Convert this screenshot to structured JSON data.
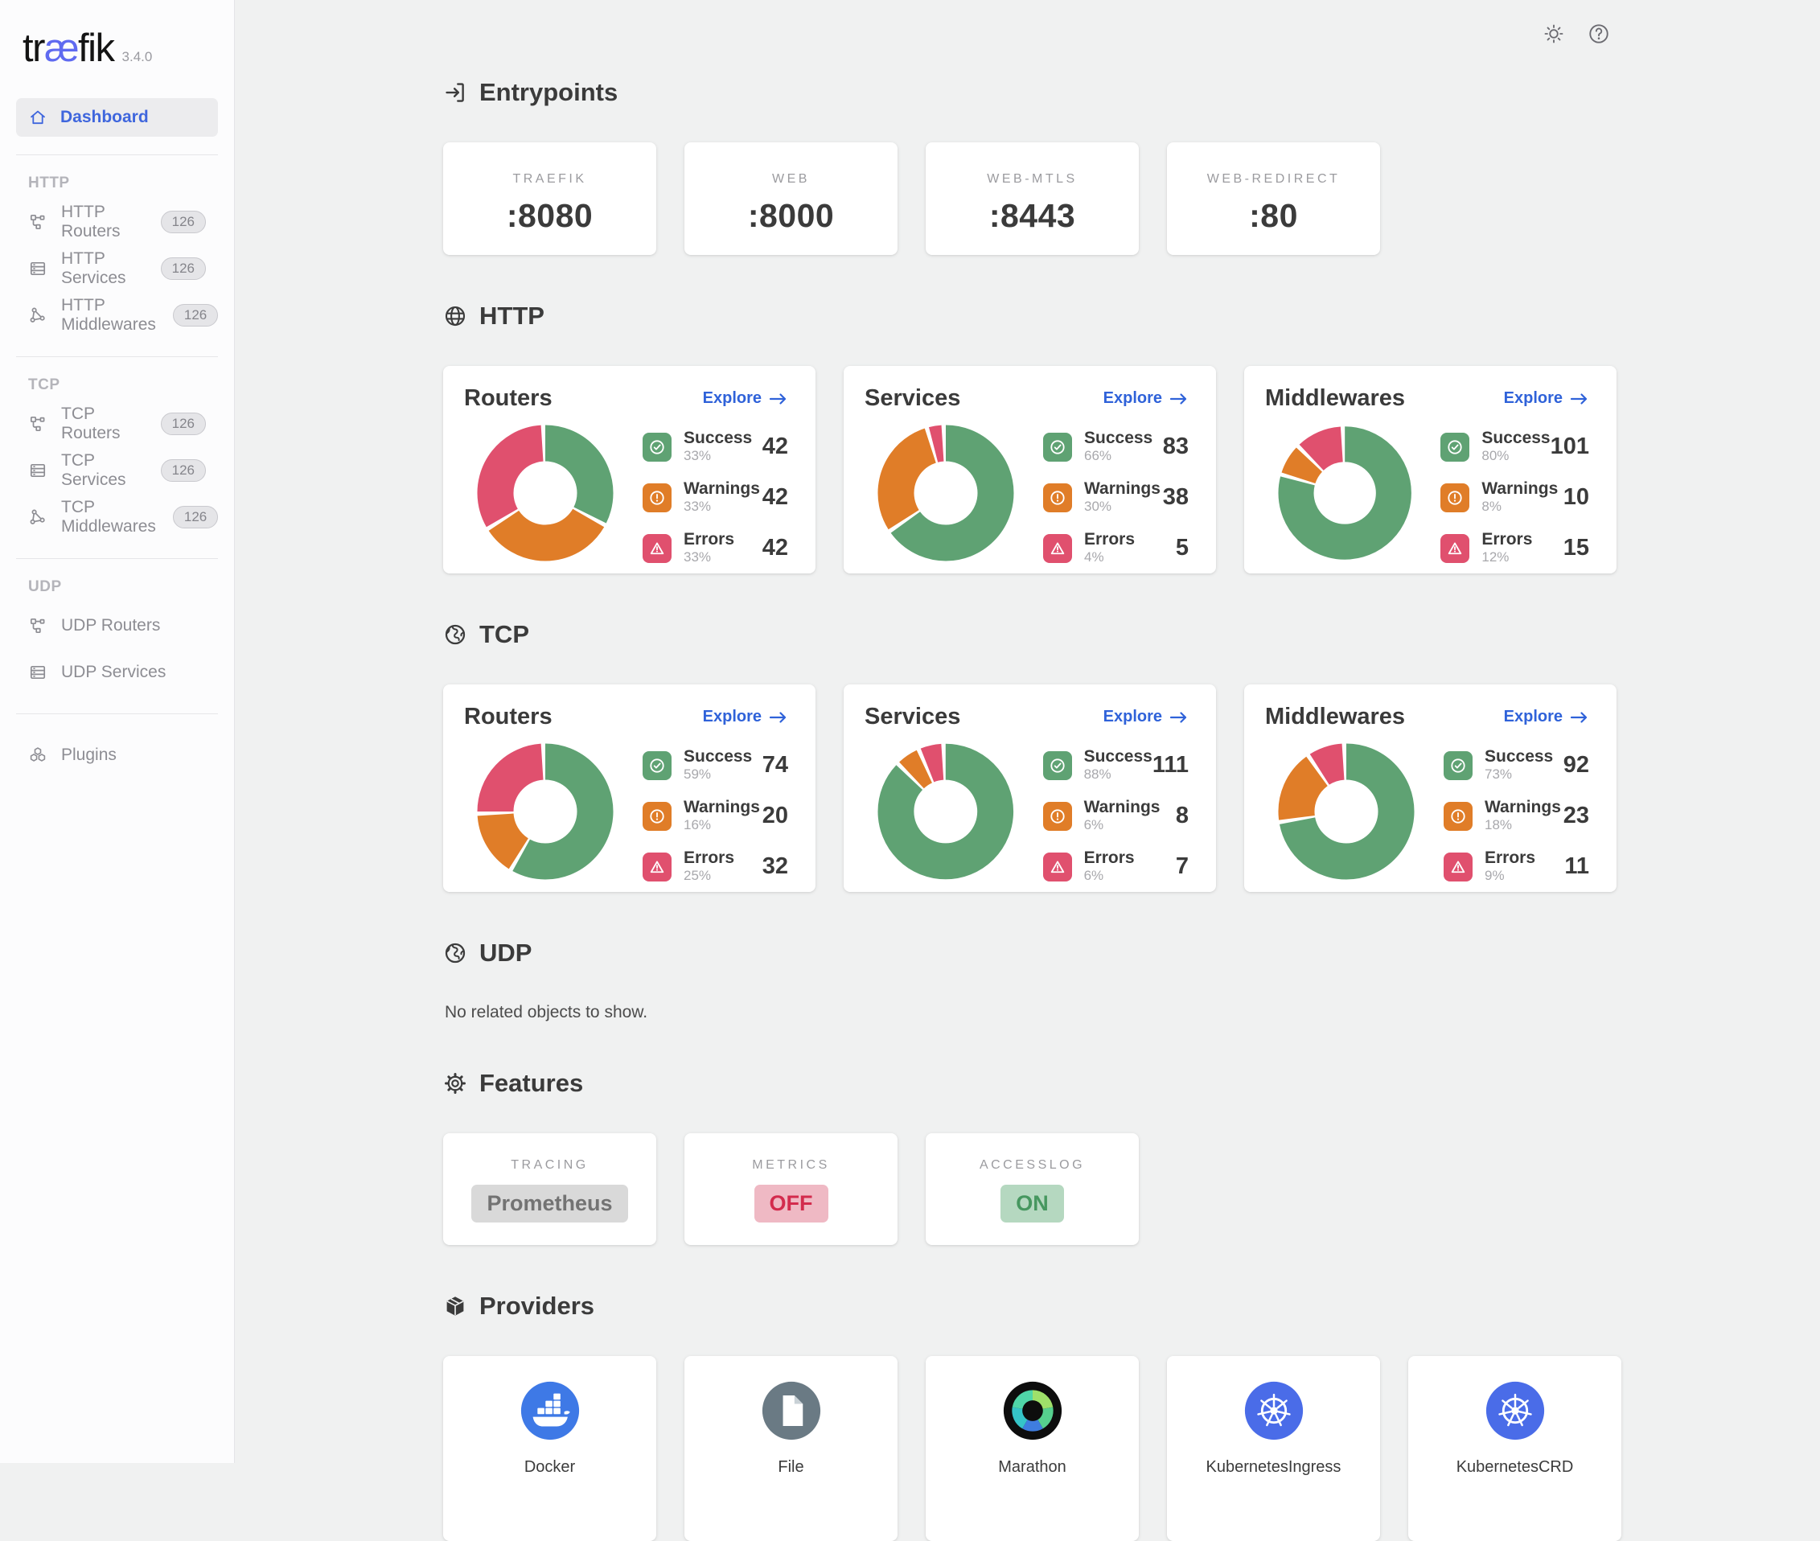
{
  "brand": {
    "pre": "tr",
    "ae": "æ",
    "post": "fik",
    "version": "3.4.0"
  },
  "colors": {
    "accent_blue": "#2f62d9",
    "brand_indigo": "#5f6af0",
    "success_green": "#5fa273",
    "warning_orange": "#e07d28",
    "error_rose": "#e0506e"
  },
  "sidebar": {
    "dashboard_label": "Dashboard",
    "sections": [
      {
        "label": "HTTP",
        "items": [
          {
            "label": "HTTP Routers",
            "badge": "126",
            "icon": "routers-icon"
          },
          {
            "label": "HTTP Services",
            "badge": "126",
            "icon": "services-icon"
          },
          {
            "label": "HTTP Middlewares",
            "badge": "126",
            "icon": "middlewares-icon"
          }
        ]
      },
      {
        "label": "TCP",
        "items": [
          {
            "label": "TCP Routers",
            "badge": "126",
            "icon": "routers-icon"
          },
          {
            "label": "TCP Services",
            "badge": "126",
            "icon": "services-icon"
          },
          {
            "label": "TCP Middlewares",
            "badge": "126",
            "icon": "middlewares-icon"
          }
        ]
      },
      {
        "label": "UDP",
        "items": [
          {
            "label": "UDP Routers",
            "badge": "",
            "icon": "routers-icon"
          },
          {
            "label": "UDP Services",
            "badge": "",
            "icon": "services-icon"
          }
        ]
      }
    ],
    "plugins_label": "Plugins"
  },
  "entrypoints": {
    "title": "Entrypoints",
    "cards": [
      {
        "name": "TRAEFIK",
        "port": ":8080"
      },
      {
        "name": "WEB",
        "port": ":8000"
      },
      {
        "name": "WEB-MTLS",
        "port": ":8443"
      },
      {
        "name": "WEB-REDIRECT",
        "port": ":80"
      }
    ]
  },
  "http": {
    "title": "HTTP",
    "cards": [
      {
        "title": "Routers",
        "explore": "Explore",
        "rows": [
          {
            "label": "Success",
            "pct": "33%",
            "value": "42"
          },
          {
            "label": "Warnings",
            "pct": "33%",
            "value": "42"
          },
          {
            "label": "Errors",
            "pct": "33%",
            "value": "42"
          }
        ]
      },
      {
        "title": "Services",
        "explore": "Explore",
        "rows": [
          {
            "label": "Success",
            "pct": "66%",
            "value": "83"
          },
          {
            "label": "Warnings",
            "pct": "30%",
            "value": "38"
          },
          {
            "label": "Errors",
            "pct": "4%",
            "value": "5"
          }
        ]
      },
      {
        "title": "Middlewares",
        "explore": "Explore",
        "rows": [
          {
            "label": "Success",
            "pct": "80%",
            "value": "101"
          },
          {
            "label": "Warnings",
            "pct": "8%",
            "value": "10"
          },
          {
            "label": "Errors",
            "pct": "12%",
            "value": "15"
          }
        ]
      }
    ]
  },
  "tcp": {
    "title": "TCP",
    "cards": [
      {
        "title": "Routers",
        "explore": "Explore",
        "rows": [
          {
            "label": "Success",
            "pct": "59%",
            "value": "74"
          },
          {
            "label": "Warnings",
            "pct": "16%",
            "value": "20"
          },
          {
            "label": "Errors",
            "pct": "25%",
            "value": "32"
          }
        ]
      },
      {
        "title": "Services",
        "explore": "Explore",
        "rows": [
          {
            "label": "Success",
            "pct": "88%",
            "value": "111"
          },
          {
            "label": "Warnings",
            "pct": "6%",
            "value": "8"
          },
          {
            "label": "Errors",
            "pct": "6%",
            "value": "7"
          }
        ]
      },
      {
        "title": "Middlewares",
        "explore": "Explore",
        "rows": [
          {
            "label": "Success",
            "pct": "73%",
            "value": "92"
          },
          {
            "label": "Warnings",
            "pct": "18%",
            "value": "23"
          },
          {
            "label": "Errors",
            "pct": "9%",
            "value": "11"
          }
        ]
      }
    ]
  },
  "udp": {
    "title": "UDP",
    "empty_text": "No related objects to show."
  },
  "features": {
    "title": "Features",
    "cards": [
      {
        "name": "TRACING",
        "value": "Prometheus",
        "state": "neutral"
      },
      {
        "name": "METRICS",
        "value": "OFF",
        "state": "off"
      },
      {
        "name": "ACCESSLOG",
        "value": "ON",
        "state": "on"
      }
    ]
  },
  "providers": {
    "title": "Providers",
    "cards": [
      {
        "name": "Docker",
        "icon": "docker-icon"
      },
      {
        "name": "File",
        "icon": "file-icon"
      },
      {
        "name": "Marathon",
        "icon": "marathon-icon"
      },
      {
        "name": "KubernetesIngress",
        "icon": "kubernetes-icon"
      },
      {
        "name": "KubernetesCRD",
        "icon": "kubernetes-icon"
      }
    ]
  },
  "chart_data": [
    {
      "type": "pie",
      "donut": true,
      "title": "HTTP Routers status",
      "labels": [
        "Success",
        "Warnings",
        "Errors"
      ],
      "values": [
        42,
        42,
        42
      ],
      "percents": [
        33,
        33,
        33
      ],
      "colors": [
        "#5fa273",
        "#e07d28",
        "#e0506e"
      ],
      "legend_position": "right"
    },
    {
      "type": "pie",
      "donut": true,
      "title": "HTTP Services status",
      "labels": [
        "Success",
        "Warnings",
        "Errors"
      ],
      "values": [
        83,
        38,
        5
      ],
      "percents": [
        66,
        30,
        4
      ],
      "colors": [
        "#5fa273",
        "#e07d28",
        "#e0506e"
      ],
      "legend_position": "right"
    },
    {
      "type": "pie",
      "donut": true,
      "title": "HTTP Middlewares status",
      "labels": [
        "Success",
        "Warnings",
        "Errors"
      ],
      "values": [
        101,
        10,
        15
      ],
      "percents": [
        80,
        8,
        12
      ],
      "colors": [
        "#5fa273",
        "#e07d28",
        "#e0506e"
      ],
      "legend_position": "right"
    },
    {
      "type": "pie",
      "donut": true,
      "title": "TCP Routers status",
      "labels": [
        "Success",
        "Warnings",
        "Errors"
      ],
      "values": [
        74,
        20,
        32
      ],
      "percents": [
        59,
        16,
        25
      ],
      "colors": [
        "#5fa273",
        "#e07d28",
        "#e0506e"
      ],
      "legend_position": "right"
    },
    {
      "type": "pie",
      "donut": true,
      "title": "TCP Services status",
      "labels": [
        "Success",
        "Warnings",
        "Errors"
      ],
      "values": [
        111,
        8,
        7
      ],
      "percents": [
        88,
        6,
        6
      ],
      "colors": [
        "#5fa273",
        "#e07d28",
        "#e0506e"
      ],
      "legend_position": "right"
    },
    {
      "type": "pie",
      "donut": true,
      "title": "TCP Middlewares status",
      "labels": [
        "Success",
        "Warnings",
        "Errors"
      ],
      "values": [
        92,
        23,
        11
      ],
      "percents": [
        73,
        18,
        9
      ],
      "colors": [
        "#5fa273",
        "#e07d28",
        "#e0506e"
      ],
      "legend_position": "right"
    }
  ]
}
